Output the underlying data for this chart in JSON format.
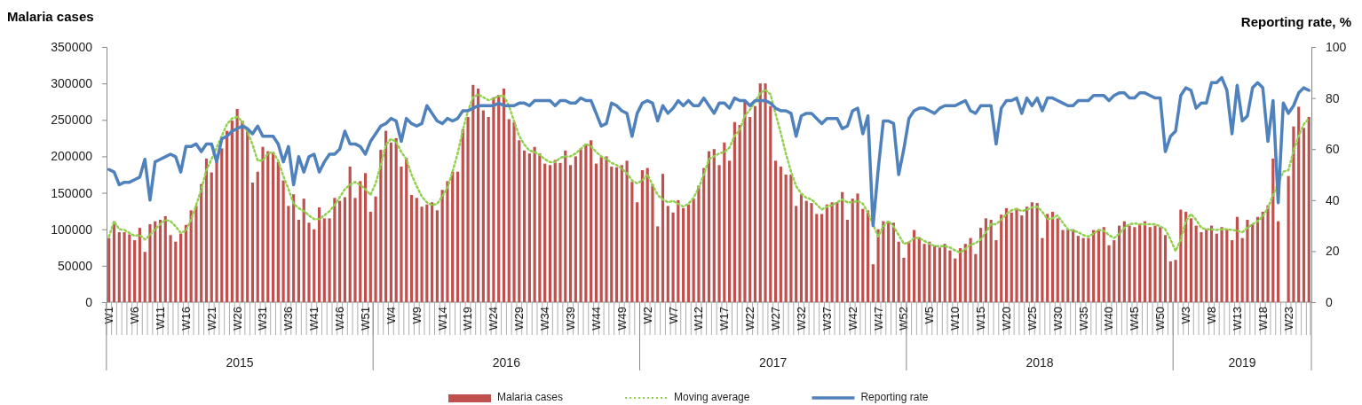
{
  "chart_data": {
    "type": "bar",
    "ylabel": "Malaria cases",
    "y2label": "Reporting rate, %",
    "categories": [
      "W1",
      null,
      null,
      null,
      null,
      "W6",
      null,
      null,
      null,
      null,
      "W11",
      null,
      null,
      null,
      null,
      "W16",
      null,
      null,
      null,
      null,
      "W21",
      null,
      null,
      null,
      null,
      "W26",
      null,
      null,
      null,
      null,
      "W31",
      null,
      null,
      null,
      null,
      "W36",
      null,
      null,
      null,
      null,
      "W41",
      null,
      null,
      null,
      null,
      "W46",
      null,
      null,
      null,
      null,
      "W51",
      null,
      null,
      null,
      null,
      "W4",
      null,
      null,
      null,
      null,
      "W9",
      null,
      null,
      null,
      null,
      "W14",
      null,
      null,
      null,
      null,
      "W19",
      null,
      null,
      null,
      null,
      "W24",
      null,
      null,
      null,
      null,
      "W29",
      null,
      null,
      null,
      null,
      "W34",
      null,
      null,
      null,
      null,
      "W39",
      null,
      null,
      null,
      null,
      "W44",
      null,
      null,
      null,
      null,
      "W49",
      null,
      null,
      null,
      null,
      "W2",
      null,
      null,
      null,
      null,
      "W7",
      null,
      null,
      null,
      null,
      "W12",
      null,
      null,
      null,
      null,
      "W17",
      null,
      null,
      null,
      null,
      "W22",
      null,
      null,
      null,
      null,
      "W27",
      null,
      null,
      null,
      null,
      "W32",
      null,
      null,
      null,
      null,
      "W37",
      null,
      null,
      null,
      null,
      "W42",
      null,
      null,
      null,
      null,
      "W47",
      null,
      null,
      null,
      null,
      "W52",
      null,
      null,
      null,
      null,
      "W5",
      null,
      null,
      null,
      null,
      "W10",
      null,
      null,
      null,
      null,
      "W15",
      null,
      null,
      null,
      null,
      "W20",
      null,
      null,
      null,
      null,
      "W25",
      null,
      null,
      null,
      null,
      "W30",
      null,
      null,
      null,
      null,
      "W35",
      null,
      null,
      null,
      null,
      "W40",
      null,
      null,
      null,
      null,
      "W45",
      null,
      null,
      null,
      null,
      "W50",
      null,
      null,
      null,
      null,
      "W3",
      null,
      null,
      null,
      null,
      "W8",
      null,
      null,
      null,
      null,
      "W13",
      null,
      null,
      null,
      null,
      "W18",
      null,
      null,
      null,
      null,
      "W23",
      null,
      null,
      null,
      null
    ],
    "series": [
      {
        "name": "Malaria cases",
        "color": "#c0504d",
        "values": [
          88000,
          111000,
          96000,
          96000,
          93000,
          85000,
          102000,
          69000,
          107000,
          111000,
          113000,
          118000,
          92000,
          83000,
          94000,
          106000,
          126000,
          132000,
          162000,
          197000,
          178000,
          194000,
          211000,
          235000,
          249000,
          265000,
          249000,
          237000,
          164000,
          179000,
          213000,
          207000,
          205000,
          192000,
          167000,
          132000,
          148000,
          113000,
          142000,
          109000,
          100000,
          130000,
          115000,
          115000,
          143000,
          139000,
          144000,
          186000,
          143000,
          166000,
          177000,
          124000,
          145000,
          209000,
          235000,
          219000,
          225000,
          186000,
          198000,
          147000,
          143000,
          131000,
          134000,
          137000,
          126000,
          154000,
          166000,
          179000,
          179000,
          237000,
          254000,
          298000,
          293000,
          263000,
          254000,
          281000,
          284000,
          293000,
          251000,
          247000,
          222000,
          208000,
          204000,
          213000,
          204000,
          190000,
          188000,
          195000,
          191000,
          208000,
          188000,
          200000,
          211000,
          217000,
          222000,
          190000,
          199000,
          200000,
          186000,
          185000,
          188000,
          194000,
          165000,
          137000,
          181000,
          184000,
          162000,
          104000,
          176000,
          132000,
          123000,
          140000,
          129000,
          134000,
          142000,
          160000,
          184000,
          207000,
          210000,
          188000,
          219000,
          194000,
          247000,
          243000,
          277000,
          254000,
          269000,
          300000,
          300000,
          269000,
          194000,
          186000,
          175000,
          175000,
          132000,
          148000,
          139000,
          136000,
          121000,
          121000,
          134000,
          137000,
          137000,
          151000,
          113000,
          142000,
          149000,
          128000,
          126000,
          52000,
          100000,
          111000,
          111000,
          109000,
          83000,
          61000,
          83000,
          99000,
          89000,
          80000,
          83000,
          78000,
          75000,
          80000,
          71000,
          60000,
          74000,
          80000,
          88000,
          66000,
          102000,
          115000,
          113000,
          85000,
          120000,
          129000,
          123000,
          129000,
          119000,
          131000,
          137000,
          136000,
          88000,
          121000,
          124000,
          115000,
          99000,
          100000,
          100000,
          91000,
          88000,
          88000,
          99000,
          100000,
          103000,
          78000,
          85000,
          105000,
          111000,
          105000,
          103000,
          107000,
          111000,
          103000,
          105000,
          103000,
          92000,
          56000,
          58000,
          127000,
          124000,
          115000,
          105000,
          96000,
          100000,
          105000,
          94000,
          103000,
          100000,
          85000,
          117000,
          88000,
          113000,
          107000,
          117000,
          124000,
          133000,
          197000,
          111000,
          null,
          173000,
          241000,
          268000,
          239000,
          254000
        ]
      },
      {
        "name": "Moving average",
        "type": "line",
        "color": "#92d050",
        "line_style": "dotted",
        "values": [
          90000,
          111000,
          100000,
          99000,
          95000,
          91000,
          92000,
          86000,
          92000,
          100000,
          107000,
          113000,
          111000,
          104000,
          95000,
          98000,
          113000,
          133000,
          155000,
          181000,
          196000,
          212000,
          228000,
          244000,
          252000,
          254000,
          248000,
          234000,
          216000,
          194000,
          194000,
          204000,
          206000,
          194000,
          173000,
          155000,
          135000,
          129000,
          125000,
          119000,
          114000,
          114000,
          119000,
          125000,
          133000,
          144000,
          155000,
          161000,
          165000,
          161000,
          155000,
          147000,
          163000,
          188000,
          216000,
          224000,
          220000,
          206000,
          196000,
          175000,
          159000,
          145000,
          137000,
          133000,
          135000,
          145000,
          157000,
          179000,
          204000,
          236000,
          262000,
          281000,
          285000,
          281000,
          277000,
          279000,
          283000,
          283000,
          269000,
          248000,
          228000,
          216000,
          208000,
          206000,
          202000,
          196000,
          192000,
          192000,
          198000,
          200000,
          200000,
          204000,
          210000,
          217000,
          214000,
          206000,
          200000,
          196000,
          191000,
          188000,
          183000,
          177000,
          167000,
          163000,
          167000,
          175000,
          161000,
          147000,
          141000,
          137000,
          139000,
          135000,
          131000,
          135000,
          143000,
          157000,
          175000,
          196000,
          200000,
          204000,
          206000,
          212000,
          228000,
          236000,
          256000,
          264000,
          275000,
          287000,
          291000,
          285000,
          258000,
          232000,
          204000,
          179000,
          159000,
          149000,
          143000,
          141000,
          134000,
          127000,
          131000,
          133000,
          137000,
          141000,
          137000,
          137000,
          139000,
          135000,
          123000,
          107000,
          90000,
          104000,
          111000,
          104000,
          92000,
          80000,
          82000,
          88000,
          88000,
          84000,
          80000,
          77000,
          77000,
          77000,
          75000,
          71000,
          68000,
          73000,
          79000,
          81000,
          86000,
          96000,
          107000,
          107000,
          113000,
          121000,
          126000,
          128000,
          125000,
          127000,
          130000,
          131000,
          124000,
          114000,
          115000,
          119000,
          109000,
          100000,
          98000,
          96000,
          92000,
          90000,
          94000,
          99000,
          98000,
          92000,
          88000,
          94000,
          102000,
          107000,
          108000,
          107000,
          107000,
          107000,
          107000,
          104000,
          100000,
          86000,
          70000,
          86000,
          111000,
          121000,
          113000,
          102000,
          100000,
          100000,
          99000,
          100000,
          100000,
          99000,
          98000,
          96000,
          102000,
          107000,
          111000,
          118000,
          129000,
          147000,
          163000,
          179000,
          181000,
          208000,
          228000,
          244000,
          252000
        ]
      },
      {
        "name": "Reporting rate",
        "type": "line",
        "axis": "y2",
        "color": "#4f81bd",
        "line_style": "solid",
        "values": [
          52,
          51,
          46,
          47,
          47,
          48,
          49,
          56,
          40,
          55,
          56,
          57,
          58,
          57,
          51,
          61,
          61,
          62,
          59,
          62,
          62,
          55,
          64,
          65,
          67,
          68,
          69,
          68,
          66,
          69,
          65,
          65,
          65,
          62,
          55,
          61,
          46,
          57,
          51,
          57,
          58,
          51,
          55,
          58,
          58,
          60,
          67,
          62,
          62,
          61,
          58,
          63,
          66,
          69,
          70,
          72,
          71,
          63,
          72,
          70,
          69,
          70,
          77,
          74,
          71,
          70,
          72,
          71,
          72,
          75,
          75,
          76,
          77,
          77,
          77,
          77,
          78,
          77,
          77,
          77,
          78,
          78,
          77,
          79,
          79,
          79,
          79,
          77,
          79,
          79,
          78,
          78,
          80,
          79,
          79,
          74,
          69,
          70,
          78,
          77,
          75,
          74,
          65,
          74,
          78,
          79,
          78,
          71,
          77,
          74,
          76,
          79,
          77,
          79,
          77,
          77,
          80,
          77,
          74,
          78,
          78,
          76,
          80,
          79,
          79,
          77,
          79,
          79,
          79,
          78,
          76,
          75,
          75,
          74,
          65,
          73,
          74,
          74,
          72,
          70,
          72,
          72,
          72,
          68,
          69,
          75,
          76,
          66,
          73,
          30,
          52,
          71,
          71,
          70,
          50,
          60,
          72,
          75,
          76,
          76,
          75,
          74,
          76,
          77,
          77,
          77,
          78,
          79,
          75,
          74,
          77,
          77,
          77,
          62,
          76,
          79,
          79,
          80,
          74,
          80,
          77,
          80,
          75,
          80,
          80,
          79,
          78,
          77,
          77,
          79,
          79,
          79,
          81,
          81,
          81,
          79,
          81,
          82,
          82,
          80,
          80,
          82,
          82,
          81,
          80,
          80,
          59,
          65,
          67,
          81,
          84,
          83,
          76,
          78,
          78,
          86,
          86,
          88,
          83,
          66,
          85,
          71,
          73,
          84,
          86,
          84,
          63,
          79,
          39,
          78,
          74,
          77,
          82,
          84,
          83
        ]
      }
    ],
    "ylim": [
      0,
      350000
    ],
    "yticks": [
      0,
      50000,
      100000,
      150000,
      200000,
      250000,
      300000,
      350000
    ],
    "y2lim": [
      0,
      100
    ],
    "y2ticks": [
      0,
      20,
      40,
      60,
      80,
      100
    ],
    "annotations": [
      "2015",
      "2016",
      "2017",
      "2018",
      "2019"
    ],
    "legend": "bottom"
  }
}
